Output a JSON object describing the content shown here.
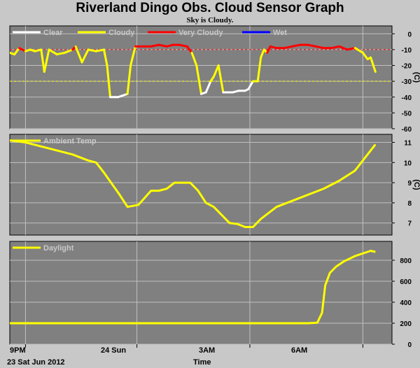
{
  "title": "Riverland Dingo Obs. Cloud Sensor Graph",
  "subtitle": "Sky is Cloudy.",
  "x_axis": {
    "title": "Time",
    "date_label": "23 Sat Jun 2012",
    "ticks": [
      "9PM",
      "24 Sun",
      "3AM",
      "6AM"
    ]
  },
  "colors": {
    "background": "#c8c8c8",
    "plot_bg": "#808080",
    "grid": "#c0c0c0",
    "clear": "#ffffff",
    "cloudy": "#ffff00",
    "very_cloudy": "#ff0000",
    "wet": "#0000ff",
    "ambient": "#ffff00",
    "daylight": "#ffff00"
  },
  "chart_data": [
    {
      "type": "line",
      "name": "sky-temperature",
      "xlim": [
        0,
        24
      ],
      "ylim": [
        -60,
        5
      ],
      "ylabel": "(C)",
      "yticks": [
        "0",
        "-10",
        "-20",
        "-30",
        "-40",
        "-50",
        "-60"
      ],
      "legend": [
        "Clear",
        "Cloudy",
        "Very Cloudy",
        "Wet"
      ],
      "thresholds": [
        -10,
        -30
      ],
      "x": [
        0,
        0.3,
        0.6,
        1,
        1.3,
        1.6,
        2.0,
        2.2,
        2.5,
        3,
        3.5,
        4.0,
        4.2,
        4.6,
        5,
        5.5,
        6,
        6.2,
        6.4,
        6.7,
        6.9,
        7.2,
        7.5,
        7.7,
        8,
        8.5,
        9,
        9.5,
        10,
        10.4,
        10.8,
        11.3,
        11.6,
        11.9,
        12.2,
        12.5,
        12.8,
        13,
        13.3,
        13.6,
        13.9,
        14.2,
        14.6,
        15,
        15.2,
        15.5,
        15.8,
        16.0,
        16.2,
        16.4,
        16.6,
        17,
        17.5,
        18,
        18.5,
        19,
        19.5,
        20,
        20.5,
        21,
        21.5,
        22,
        22.5,
        22.8,
        23.0,
        23.3
      ],
      "y": [
        -12,
        -13,
        -9,
        -11,
        -10,
        -11,
        -10,
        -24,
        -10,
        -13,
        -12,
        -10,
        -8,
        -18,
        -10,
        -11,
        -10,
        -20,
        -40,
        -40,
        -40,
        -39,
        -38,
        -20,
        -8,
        -8,
        -8,
        -7,
        -8,
        -7,
        -7,
        -8,
        -12,
        -20,
        -38,
        -37,
        -30,
        -27,
        -20,
        -37,
        -37,
        -37,
        -36,
        -36,
        -35,
        -30,
        -30,
        -15,
        -10,
        -12,
        -8,
        -9,
        -9,
        -8,
        -7,
        -7,
        -8,
        -9,
        -9,
        -8,
        -10,
        -9,
        -12,
        -16,
        -15,
        -24
      ]
    },
    {
      "type": "line",
      "name": "ambient-temp",
      "xlim": [
        0,
        24
      ],
      "ylim": [
        6.4,
        11.4
      ],
      "ylabel": "(C)",
      "yticks": [
        "11",
        "10",
        "9",
        "8",
        "7"
      ],
      "legend": [
        "Ambient Temp"
      ],
      "x": [
        0,
        1,
        2,
        3,
        4,
        5,
        5.5,
        6,
        7,
        7.5,
        8.2,
        9,
        9.5,
        10,
        10.5,
        11,
        11.5,
        12,
        12.5,
        13,
        13.5,
        14,
        14.5,
        15,
        15.5,
        16,
        17,
        18,
        19,
        20,
        21,
        22,
        22.5,
        23,
        23.3
      ],
      "y": [
        11.1,
        11.0,
        10.8,
        10.6,
        10.4,
        10.1,
        10.0,
        9.5,
        8.4,
        7.8,
        7.9,
        8.6,
        8.6,
        8.7,
        9.0,
        9.0,
        9.0,
        8.6,
        8.0,
        7.8,
        7.4,
        7.0,
        6.95,
        6.8,
        6.8,
        7.2,
        7.8,
        8.1,
        8.4,
        8.7,
        9.1,
        9.6,
        10.1,
        10.6,
        10.9
      ]
    },
    {
      "type": "line",
      "name": "daylight",
      "xlim": [
        0,
        24
      ],
      "ylim": [
        0,
        980
      ],
      "yticks": [
        "800",
        "600",
        "400",
        "200",
        "0"
      ],
      "legend": [
        "Daylight"
      ],
      "x": [
        0,
        4,
        8,
        12,
        16,
        19,
        19.6,
        19.9,
        20.1,
        20.4,
        20.8,
        21.3,
        22.0,
        22.6,
        23.0,
        23.3
      ],
      "y": [
        200,
        200,
        200,
        200,
        200,
        200,
        205,
        300,
        560,
        680,
        740,
        790,
        840,
        870,
        890,
        880
      ]
    }
  ]
}
